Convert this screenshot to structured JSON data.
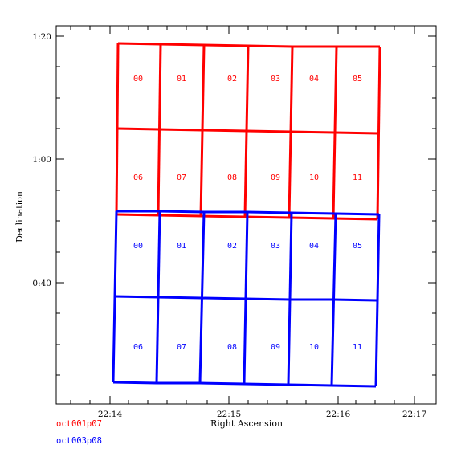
{
  "chart_data": {
    "type": "scatter",
    "xlabel": "Right Ascension",
    "ylabel": "Declination",
    "x_ticks": [
      "22:14",
      "22:15",
      "22:16",
      "22:17"
    ],
    "y_ticks": [
      "1:20",
      "1:00",
      "0:40"
    ],
    "series": [
      {
        "name": "oct001p07",
        "color": "#ff0000",
        "cells": [
          [
            "00",
            "01",
            "02",
            "03",
            "04",
            "05"
          ],
          [
            "06",
            "07",
            "08",
            "09",
            "10",
            "11"
          ]
        ]
      },
      {
        "name": "oct003p08",
        "color": "#0000ff",
        "cells": [
          [
            "00",
            "01",
            "02",
            "03",
            "04",
            "05"
          ],
          [
            "06",
            "07",
            "08",
            "09",
            "10",
            "11"
          ]
        ]
      }
    ]
  }
}
